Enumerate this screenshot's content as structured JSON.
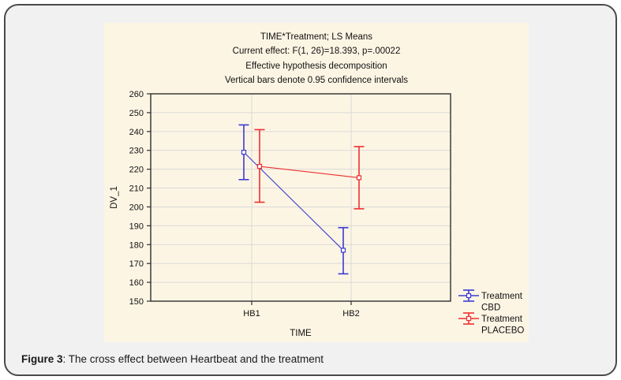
{
  "chart_data": {
    "type": "line",
    "title": "TIME*Treatment; LS Means",
    "annotation_lines": [
      "Current effect: F(1, 26)=18.393, p=.00022",
      "Effective hypothesis decomposition",
      "Vertical bars denote 0.95 confidence intervals"
    ],
    "xlabel": "TIME",
    "ylabel": "DV_1",
    "categories": [
      "HB1",
      "HB2"
    ],
    "ylim": [
      150,
      260
    ],
    "ytick_step": 10,
    "grid": true,
    "error_bars": "0.95 confidence intervals",
    "legend_position": "outside-bottom-right",
    "series": [
      {
        "name": "Treatment CBD",
        "legend_lines": [
          "Treatment",
          "CBD"
        ],
        "color": "#3b3bd1",
        "means": [
          229,
          177
        ],
        "ci_low": [
          214.5,
          164.5
        ],
        "ci_high": [
          243.5,
          189
        ]
      },
      {
        "name": "Treatment PLACEBO",
        "legend_lines": [
          "Treatment",
          "PLACEBO"
        ],
        "color": "#ed2f2f",
        "means": [
          221.5,
          215.5
        ],
        "ci_low": [
          202.5,
          199
        ],
        "ci_high": [
          241,
          232
        ]
      }
    ]
  },
  "caption": {
    "label": "Figure 3",
    "text": ": The cross effect between Heartbeat and the treatment"
  },
  "colors": {
    "panel_background": "#fdf5e4",
    "card_background": "#f1f1f1",
    "card_border": "#4a4a4a",
    "grid": "#d9d9d9",
    "frame": "#2e2e2e",
    "cbd_blue": "#3b3bd1",
    "placebo_red": "#ed2f2f"
  }
}
